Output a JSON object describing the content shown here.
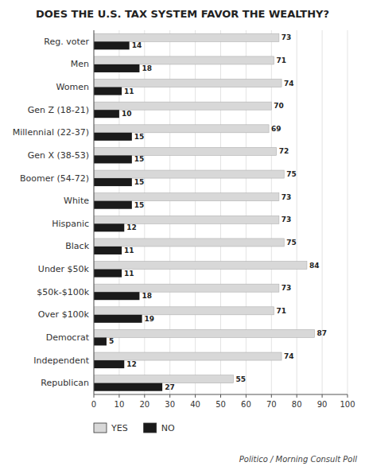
{
  "chart_data": {
    "type": "bar",
    "orientation": "horizontal",
    "title": "DOES THE U.S. TAX SYSTEM FAVOR THE WEALTHY?",
    "categories": [
      "Reg. voter",
      "Men",
      "Women",
      "Gen Z (18-21)",
      "Millennial (22-37)",
      "Gen X (38-53)",
      "Boomer (54-72)",
      "White",
      "Hispanic",
      "Black",
      "Under $50k",
      "$50k-$100k",
      "Over $100k",
      "Democrat",
      "Independent",
      "Republican"
    ],
    "series": [
      {
        "name": "YES",
        "color": "#d8d8d8",
        "values": [
          73,
          71,
          74,
          70,
          69,
          72,
          75,
          73,
          73,
          75,
          84,
          73,
          71,
          87,
          74,
          55
        ]
      },
      {
        "name": "NO",
        "color": "#1a1a1a",
        "values": [
          14,
          18,
          11,
          10,
          15,
          15,
          15,
          15,
          12,
          11,
          11,
          18,
          19,
          5,
          12,
          27
        ]
      }
    ],
    "xlim": [
      0,
      100
    ],
    "xticks": [
      0,
      10,
      20,
      30,
      40,
      50,
      60,
      70,
      80,
      90,
      100
    ],
    "grid": true,
    "data_labels": true,
    "legend": "bottom",
    "annotations": [
      "Politico / Morning Consult Poll"
    ]
  }
}
